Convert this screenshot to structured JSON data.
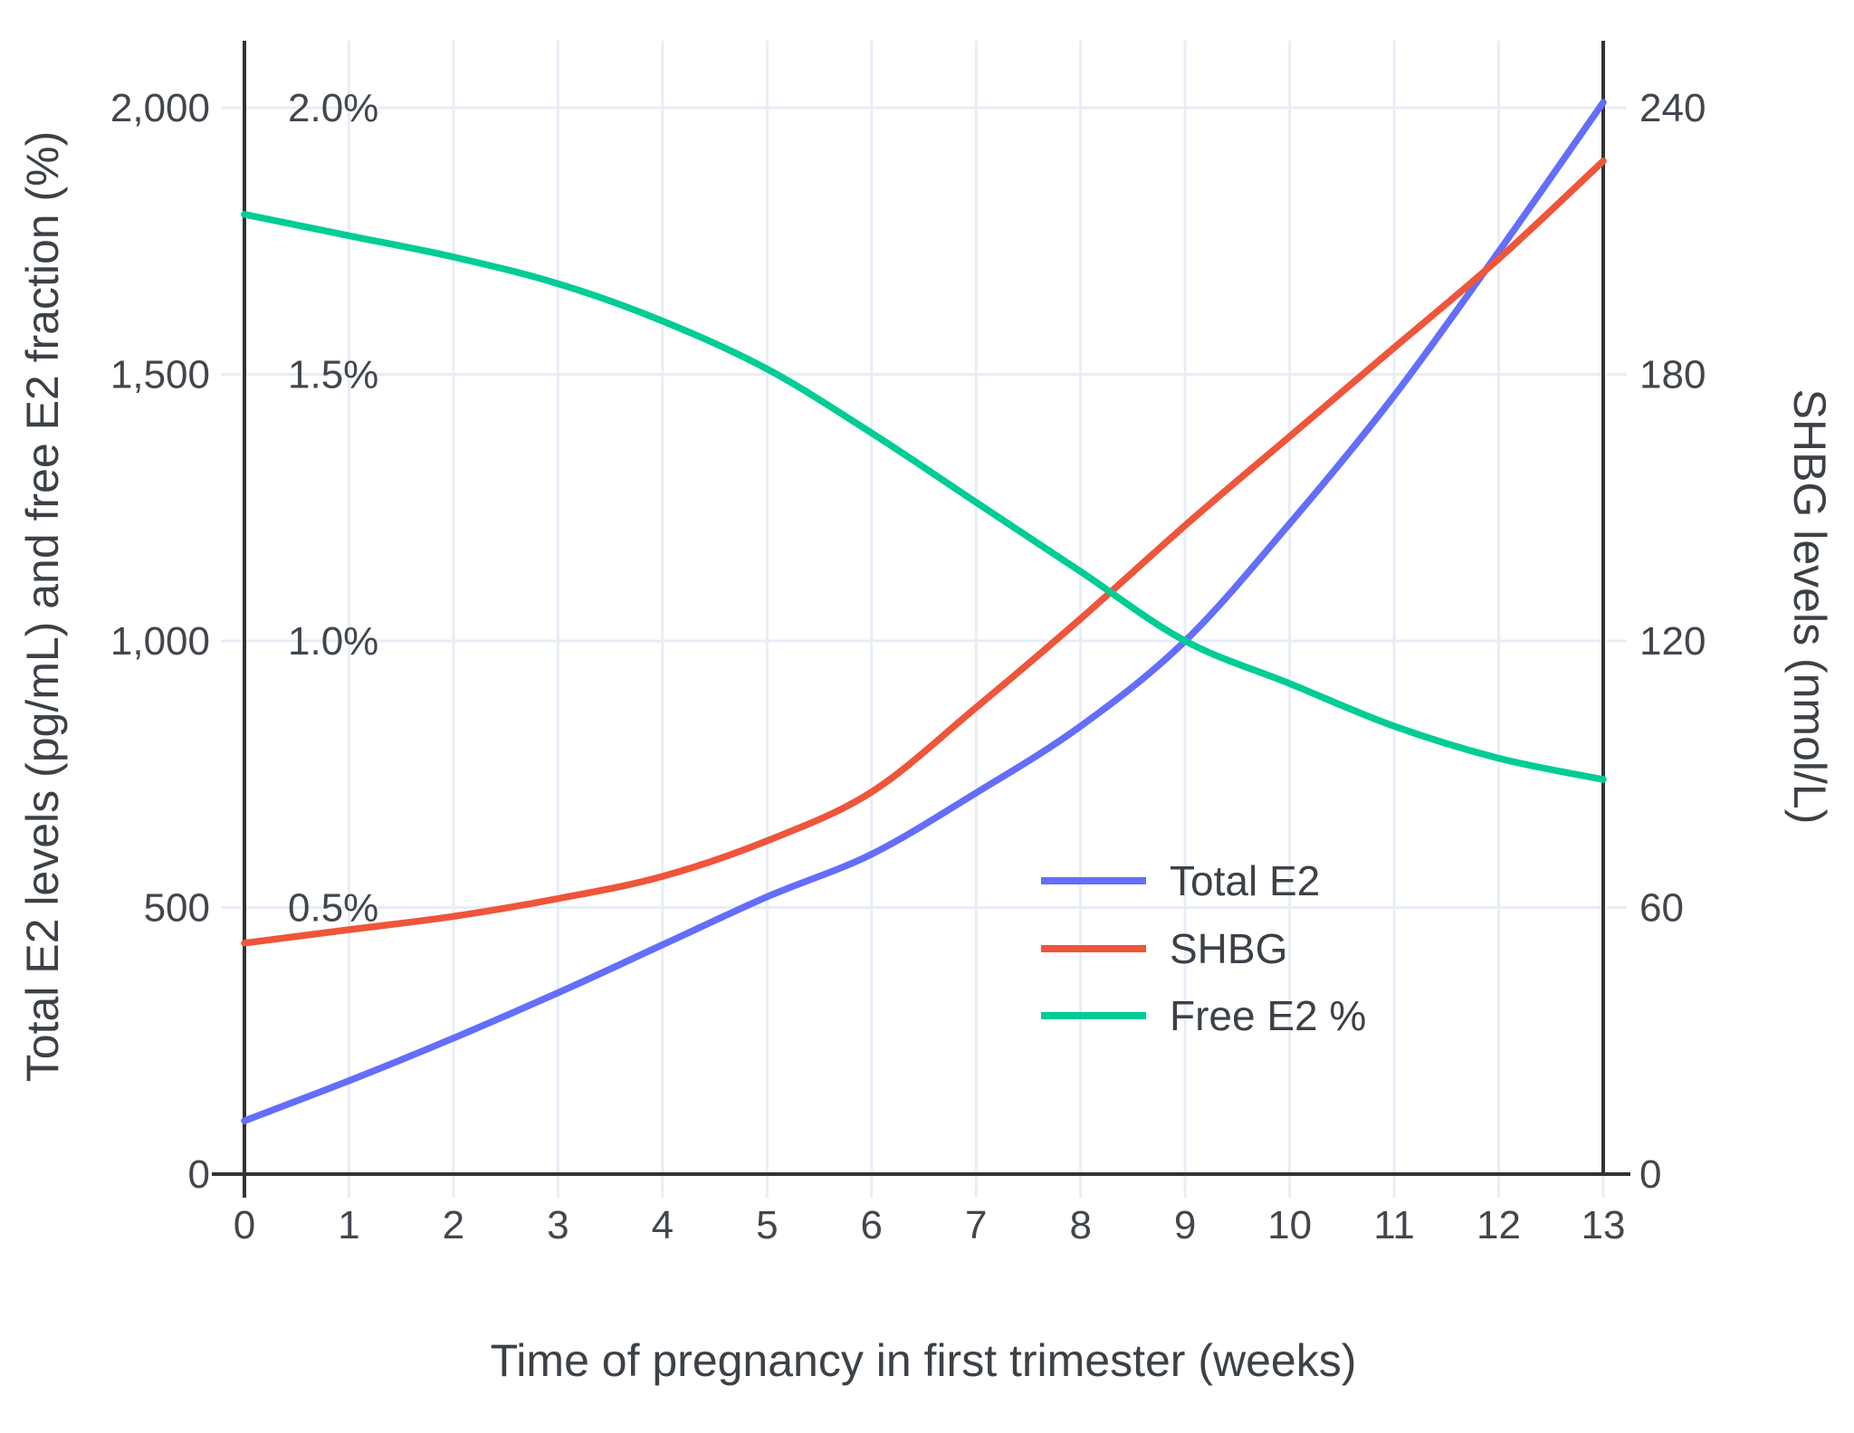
{
  "chart_data": {
    "type": "line",
    "title": "",
    "xlabel": "Time of pregnancy in first trimester (weeks)",
    "ylabel_left": "Total E2 levels (pg/mL) and free E2 fraction (%)",
    "ylabel_right": "SHBG levels (nmol/L)",
    "x": [
      0,
      1,
      2,
      3,
      4,
      5,
      6,
      7,
      8,
      9,
      10,
      11,
      12,
      13
    ],
    "x_tick_labels": [
      "0",
      "1",
      "2",
      "3",
      "4",
      "5",
      "6",
      "7",
      "8",
      "9",
      "10",
      "11",
      "12",
      "13"
    ],
    "series": [
      {
        "name": "Total E2",
        "axis": "left",
        "units": "pg/mL",
        "color": "#636EFA",
        "values": [
          100,
          175,
          255,
          340,
          430,
          520,
          600,
          715,
          840,
          1000,
          1220,
          1460,
          1730,
          2010
        ]
      },
      {
        "name": "SHBG",
        "axis": "right",
        "units": "nmol/L",
        "color": "#EF553B",
        "values": [
          52,
          55,
          58,
          62,
          67,
          75,
          86,
          105,
          125,
          146,
          166,
          186,
          206,
          228
        ]
      },
      {
        "name": "Free E2 %",
        "axis": "left_percent",
        "units": "%",
        "values_note": "plotted against left axis where 1.0% aligns with 1,000",
        "color": "#00CC96",
        "values": [
          1.8,
          1.76,
          1.72,
          1.67,
          1.6,
          1.51,
          1.39,
          1.26,
          1.13,
          1.0,
          0.92,
          0.84,
          0.78,
          0.74
        ]
      }
    ],
    "left_axis": {
      "range": [
        0,
        2000
      ],
      "ticks": [
        {
          "value": 2000,
          "label": "2,000",
          "percent_label": "2.0%"
        },
        {
          "value": 1500,
          "label": "1,500",
          "percent_label": "1.5%"
        },
        {
          "value": 1000,
          "label": "1,000",
          "percent_label": "1.0%"
        },
        {
          "value": 500,
          "label": "500",
          "percent_label": "0.5%"
        },
        {
          "value": 0,
          "label": "0",
          "percent_label": ""
        }
      ]
    },
    "right_axis": {
      "range": [
        0,
        240
      ],
      "ticks": [
        {
          "value": 240,
          "label": "240"
        },
        {
          "value": 180,
          "label": "180"
        },
        {
          "value": 120,
          "label": "120"
        },
        {
          "value": 60,
          "label": "60"
        },
        {
          "value": 0,
          "label": "0"
        }
      ]
    },
    "legend": {
      "position": "inside-right",
      "entries": [
        "Total E2",
        "SHBG",
        "Free E2 %"
      ]
    },
    "grid": true,
    "colors": {
      "background": "#ffffff",
      "grid": "#e8edf6",
      "axis_line": "#333333",
      "tick_text": "#42464d",
      "title_text": "#3c4147"
    }
  }
}
